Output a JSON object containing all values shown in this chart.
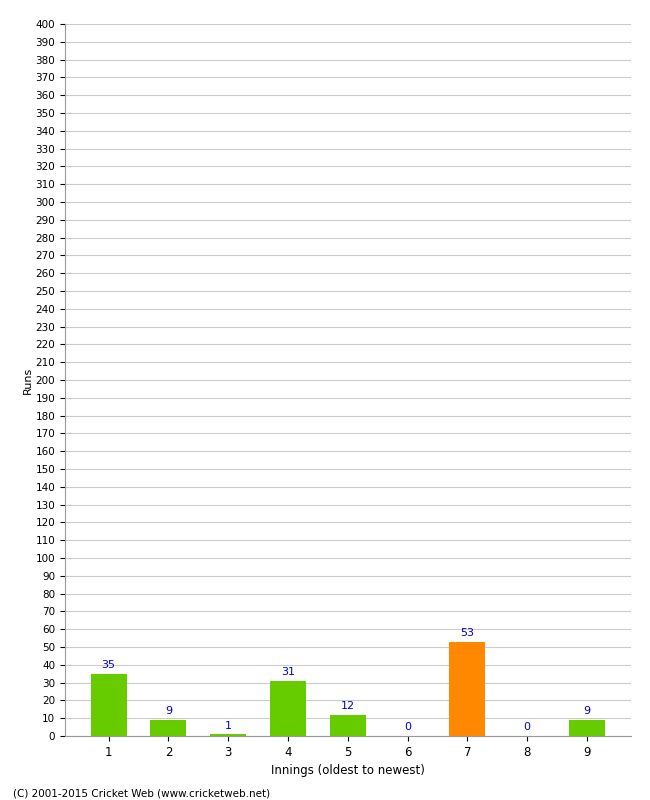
{
  "title": "",
  "xlabel": "Innings (oldest to newest)",
  "ylabel": "Runs",
  "categories": [
    "1",
    "2",
    "3",
    "4",
    "5",
    "6",
    "7",
    "8",
    "9"
  ],
  "values": [
    35,
    9,
    1,
    31,
    12,
    0,
    53,
    0,
    9
  ],
  "bar_colors": [
    "#66cc00",
    "#66cc00",
    "#66cc00",
    "#66cc00",
    "#66cc00",
    "#66cc00",
    "#ff8800",
    "#66cc00",
    "#66cc00"
  ],
  "label_color": "#0000cc",
  "ylim": [
    0,
    400
  ],
  "background_color": "#ffffff",
  "grid_color": "#cccccc",
  "footer": "(C) 2001-2015 Cricket Web (www.cricketweb.net)"
}
